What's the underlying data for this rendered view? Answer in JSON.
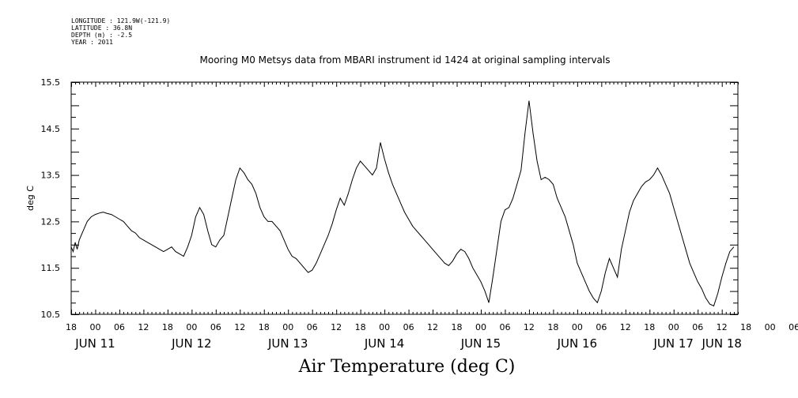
{
  "header": {
    "longitude": "LONGITUDE : 121.9W(-121.9)",
    "latitude": "LATITUDE : 36.8N",
    "depth": "DEPTH (m) : -2.5",
    "year": "YEAR : 2011"
  },
  "chart_data": {
    "type": "line",
    "title": "Mooring M0 Metsys data from MBARI instrument id 1424 at original sampling intervals",
    "xlabel": "Air Temperature (deg C)",
    "ylabel": "deg C",
    "x_unit": "hours since 2011-06-10 18:00",
    "xlim": [
      0,
      166
    ],
    "ylim": [
      10.5,
      15.5
    ],
    "yticks": [
      10.5,
      11.5,
      12.5,
      13.5,
      14.5,
      15.5
    ],
    "x_hour_ticks": [
      "18",
      "00",
      "06",
      "12",
      "18",
      "00",
      "06",
      "12",
      "18",
      "00",
      "06",
      "12",
      "18",
      "00",
      "06",
      "12",
      "18",
      "00",
      "06",
      "12",
      "18",
      "00",
      "06",
      "12",
      "18",
      "00",
      "06",
      "12",
      "18",
      "00",
      "06",
      "12"
    ],
    "date_labels": [
      "JUN 11",
      "JUN 12",
      "JUN 13",
      "JUN 14",
      "JUN 15",
      "JUN 16",
      "JUN 17",
      "JUN 18"
    ],
    "grid": false,
    "color": "#000000",
    "series": [
      {
        "points": [
          [
            0,
            11.95
          ],
          [
            0.5,
            11.85
          ],
          [
            1,
            12.05
          ],
          [
            1.5,
            11.9
          ],
          [
            2,
            12.1
          ],
          [
            3,
            12.3
          ],
          [
            4,
            12.5
          ],
          [
            5,
            12.6
          ],
          [
            6,
            12.65
          ],
          [
            7,
            12.68
          ],
          [
            8,
            12.7
          ],
          [
            9,
            12.67
          ],
          [
            10,
            12.65
          ],
          [
            11,
            12.6
          ],
          [
            12,
            12.55
          ],
          [
            13,
            12.5
          ],
          [
            14,
            12.4
          ],
          [
            15,
            12.3
          ],
          [
            16,
            12.25
          ],
          [
            17,
            12.15
          ],
          [
            18,
            12.1
          ],
          [
            19,
            12.05
          ],
          [
            20,
            12.0
          ],
          [
            21,
            11.95
          ],
          [
            22,
            11.9
          ],
          [
            23,
            11.85
          ],
          [
            24,
            11.9
          ],
          [
            25,
            11.95
          ],
          [
            26,
            11.85
          ],
          [
            27,
            11.8
          ],
          [
            28,
            11.75
          ],
          [
            29,
            11.95
          ],
          [
            30,
            12.2
          ],
          [
            31,
            12.6
          ],
          [
            32,
            12.8
          ],
          [
            33,
            12.65
          ],
          [
            34,
            12.3
          ],
          [
            35,
            12.0
          ],
          [
            36,
            11.95
          ],
          [
            37,
            12.1
          ],
          [
            38,
            12.2
          ],
          [
            39,
            12.6
          ],
          [
            40,
            13.0
          ],
          [
            41,
            13.4
          ],
          [
            42,
            13.65
          ],
          [
            43,
            13.55
          ],
          [
            44,
            13.4
          ],
          [
            45,
            13.3
          ],
          [
            46,
            13.1
          ],
          [
            47,
            12.8
          ],
          [
            48,
            12.6
          ],
          [
            49,
            12.5
          ],
          [
            50,
            12.5
          ],
          [
            51,
            12.4
          ],
          [
            52,
            12.3
          ],
          [
            53,
            12.1
          ],
          [
            54,
            11.9
          ],
          [
            55,
            11.75
          ],
          [
            56,
            11.7
          ],
          [
            57,
            11.6
          ],
          [
            58,
            11.5
          ],
          [
            59,
            11.4
          ],
          [
            60,
            11.45
          ],
          [
            61,
            11.6
          ],
          [
            62,
            11.8
          ],
          [
            63,
            12.0
          ],
          [
            64,
            12.2
          ],
          [
            65,
            12.45
          ],
          [
            66,
            12.75
          ],
          [
            67,
            13.0
          ],
          [
            68,
            12.85
          ],
          [
            69,
            13.1
          ],
          [
            70,
            13.4
          ],
          [
            71,
            13.65
          ],
          [
            72,
            13.8
          ],
          [
            73,
            13.7
          ],
          [
            74,
            13.6
          ],
          [
            75,
            13.5
          ],
          [
            76,
            13.65
          ],
          [
            77,
            14.2
          ],
          [
            78,
            13.85
          ],
          [
            79,
            13.55
          ],
          [
            80,
            13.3
          ],
          [
            81,
            13.1
          ],
          [
            82,
            12.9
          ],
          [
            83,
            12.7
          ],
          [
            84,
            12.55
          ],
          [
            85,
            12.4
          ],
          [
            86,
            12.3
          ],
          [
            87,
            12.2
          ],
          [
            88,
            12.1
          ],
          [
            89,
            12.0
          ],
          [
            90,
            11.9
          ],
          [
            91,
            11.8
          ],
          [
            92,
            11.7
          ],
          [
            93,
            11.6
          ],
          [
            94,
            11.55
          ],
          [
            95,
            11.65
          ],
          [
            96,
            11.8
          ],
          [
            97,
            11.9
          ],
          [
            98,
            11.85
          ],
          [
            99,
            11.7
          ],
          [
            100,
            11.5
          ],
          [
            101,
            11.35
          ],
          [
            102,
            11.2
          ],
          [
            103,
            11.0
          ],
          [
            104,
            10.75
          ],
          [
            105,
            11.3
          ],
          [
            106,
            11.9
          ],
          [
            107,
            12.5
          ],
          [
            108,
            12.75
          ],
          [
            109,
            12.8
          ],
          [
            110,
            13.0
          ],
          [
            111,
            13.3
          ],
          [
            112,
            13.6
          ],
          [
            113,
            14.4
          ],
          [
            114,
            15.1
          ],
          [
            115,
            14.4
          ],
          [
            116,
            13.8
          ],
          [
            117,
            13.4
          ],
          [
            118,
            13.45
          ],
          [
            119,
            13.4
          ],
          [
            120,
            13.3
          ],
          [
            121,
            13.0
          ],
          [
            122,
            12.8
          ],
          [
            123,
            12.6
          ],
          [
            124,
            12.3
          ],
          [
            125,
            12.0
          ],
          [
            126,
            11.6
          ],
          [
            127,
            11.4
          ],
          [
            128,
            11.2
          ],
          [
            129,
            11.0
          ],
          [
            130,
            10.85
          ],
          [
            131,
            10.75
          ],
          [
            132,
            11.0
          ],
          [
            133,
            11.4
          ],
          [
            134,
            11.7
          ],
          [
            135,
            11.5
          ],
          [
            136,
            11.3
          ],
          [
            137,
            11.9
          ],
          [
            138,
            12.3
          ],
          [
            139,
            12.7
          ],
          [
            140,
            12.95
          ],
          [
            141,
            13.1
          ],
          [
            142,
            13.25
          ],
          [
            143,
            13.35
          ],
          [
            144,
            13.4
          ],
          [
            145,
            13.5
          ],
          [
            146,
            13.65
          ],
          [
            147,
            13.5
          ],
          [
            148,
            13.3
          ],
          [
            149,
            13.1
          ],
          [
            150,
            12.8
          ],
          [
            151,
            12.5
          ],
          [
            152,
            12.2
          ],
          [
            153,
            11.9
          ],
          [
            154,
            11.6
          ],
          [
            155,
            11.4
          ],
          [
            156,
            11.2
          ],
          [
            157,
            11.05
          ],
          [
            158,
            10.85
          ],
          [
            159,
            10.72
          ],
          [
            160,
            10.68
          ],
          [
            161,
            10.95
          ],
          [
            162,
            11.3
          ],
          [
            163,
            11.6
          ],
          [
            164,
            11.85
          ],
          [
            165,
            11.95
          ]
        ]
      }
    ]
  }
}
